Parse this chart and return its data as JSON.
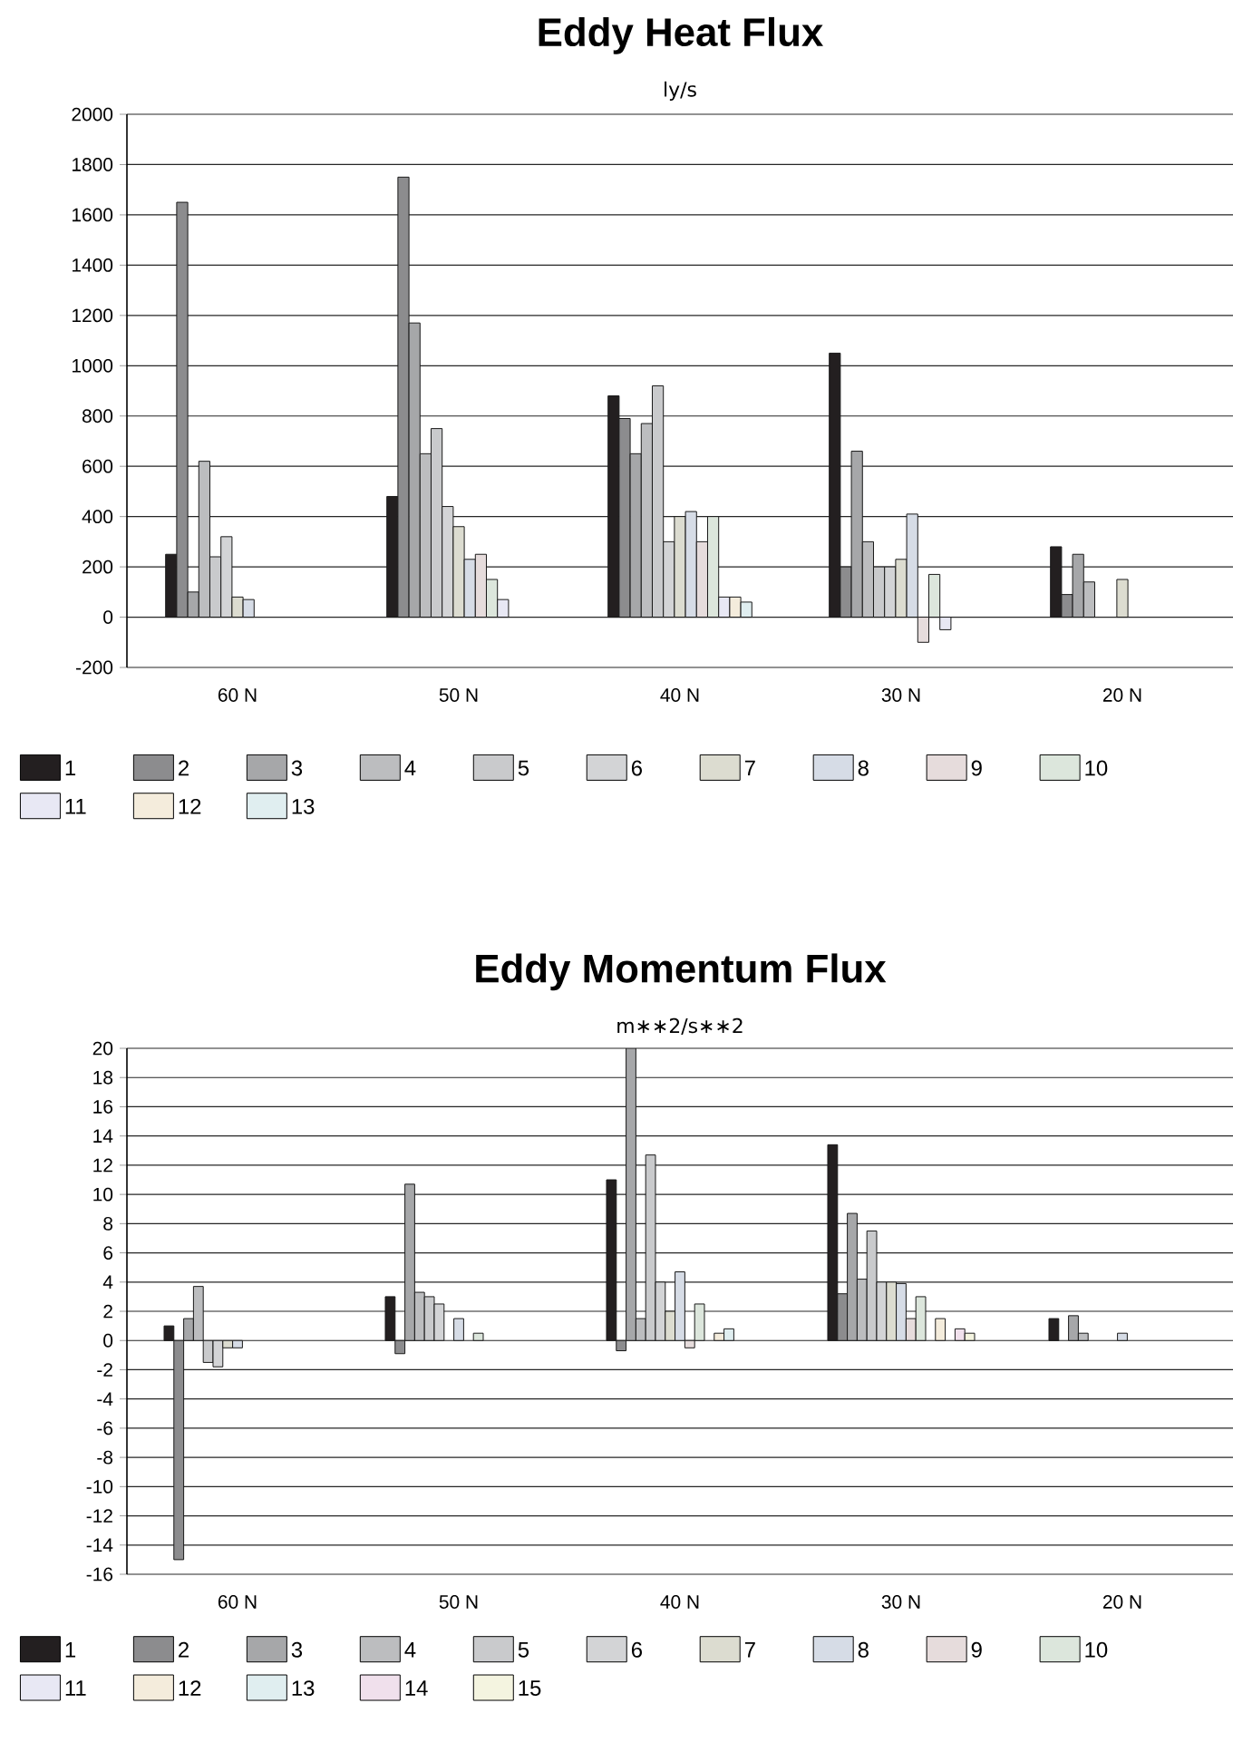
{
  "chart_data": [
    {
      "type": "bar",
      "title": "Eddy Heat Flux",
      "subtitle": "ly/s",
      "categories": [
        "60 N",
        "50 N",
        "40 N",
        "30 N",
        "20 N"
      ],
      "series": [
        {
          "name": "1",
          "color": "#231f20",
          "values": [
            250,
            480,
            880,
            1050,
            280
          ]
        },
        {
          "name": "2",
          "color": "#8c8c8e",
          "values": [
            1650,
            1750,
            790,
            200,
            90
          ]
        },
        {
          "name": "3",
          "color": "#a6a7a9",
          "values": [
            100,
            1170,
            650,
            660,
            250
          ]
        },
        {
          "name": "4",
          "color": "#bcbdbf",
          "values": [
            620,
            650,
            770,
            300,
            140
          ]
        },
        {
          "name": "5",
          "color": "#c9cacc",
          "values": [
            240,
            750,
            920,
            200,
            null
          ]
        },
        {
          "name": "6",
          "color": "#d3d4d6",
          "values": [
            320,
            440,
            300,
            200,
            null
          ]
        },
        {
          "name": "7",
          "color": "#dcdcd0",
          "values": [
            80,
            360,
            400,
            230,
            150
          ]
        },
        {
          "name": "8",
          "color": "#d6dce6",
          "values": [
            70,
            230,
            420,
            410,
            null
          ]
        },
        {
          "name": "9",
          "color": "#e6dcdc",
          "values": [
            null,
            250,
            300,
            -100,
            null
          ]
        },
        {
          "name": "10",
          "color": "#dce6dc",
          "values": [
            null,
            150,
            400,
            170,
            null
          ]
        },
        {
          "name": "11",
          "color": "#e8e8f4",
          "values": [
            null,
            70,
            80,
            -50,
            null
          ]
        },
        {
          "name": "12",
          "color": "#f4ecdc",
          "values": [
            null,
            null,
            80,
            null,
            null
          ]
        },
        {
          "name": "13",
          "color": "#e0eef0",
          "values": [
            null,
            null,
            60,
            null,
            null
          ]
        }
      ],
      "ylim": [
        -200,
        2000
      ],
      "yticks": [
        -200,
        0,
        200,
        400,
        600,
        800,
        1000,
        1200,
        1400,
        1600,
        1800,
        2000
      ],
      "grid": "y",
      "legend": "bottom"
    },
    {
      "type": "bar",
      "title": "Eddy Momentum Flux",
      "subtitle": "m∗∗2/s∗∗2",
      "categories": [
        "60 N",
        "50 N",
        "40 N",
        "30 N",
        "20 N"
      ],
      "series": [
        {
          "name": "1",
          "color": "#231f20",
          "values": [
            1,
            3,
            11,
            13.4,
            1.5
          ]
        },
        {
          "name": "2",
          "color": "#8c8c8e",
          "values": [
            -15,
            -0.9,
            -0.7,
            3.2,
            null
          ]
        },
        {
          "name": "3",
          "color": "#a6a7a9",
          "values": [
            1.5,
            10.7,
            20,
            8.7,
            1.7
          ]
        },
        {
          "name": "4",
          "color": "#bcbdbf",
          "values": [
            3.7,
            3.3,
            1.5,
            4.2,
            0.5
          ]
        },
        {
          "name": "5",
          "color": "#c9cacc",
          "values": [
            -1.5,
            3,
            12.7,
            7.5,
            null
          ]
        },
        {
          "name": "6",
          "color": "#d3d4d6",
          "values": [
            -1.8,
            2.5,
            4,
            4,
            null
          ]
        },
        {
          "name": "7",
          "color": "#dcdcd0",
          "values": [
            -0.5,
            null,
            2,
            4,
            null
          ]
        },
        {
          "name": "8",
          "color": "#d6dce6",
          "values": [
            -0.5,
            1.5,
            4.7,
            3.9,
            0.5
          ]
        },
        {
          "name": "9",
          "color": "#e6dcdc",
          "values": [
            null,
            null,
            -0.5,
            1.5,
            null
          ]
        },
        {
          "name": "10",
          "color": "#dce6dc",
          "values": [
            null,
            0.5,
            2.5,
            3,
            null
          ]
        },
        {
          "name": "11",
          "color": "#e8e8f4",
          "values": [
            null,
            null,
            null,
            null,
            null
          ]
        },
        {
          "name": "12",
          "color": "#f4ecdc",
          "values": [
            null,
            null,
            0.5,
            1.5,
            null
          ]
        },
        {
          "name": "13",
          "color": "#e0eef0",
          "values": [
            null,
            null,
            0.8,
            null,
            null
          ]
        },
        {
          "name": "14",
          "color": "#f0e0ec",
          "values": [
            null,
            null,
            null,
            0.8,
            null
          ]
        },
        {
          "name": "15",
          "color": "#f4f4e0",
          "values": [
            null,
            null,
            null,
            0.5,
            null
          ]
        }
      ],
      "ylim": [
        -16,
        20
      ],
      "yticks": [
        -16,
        -14,
        -12,
        -10,
        -8,
        -6,
        -4,
        -2,
        0,
        2,
        4,
        6,
        8,
        10,
        12,
        14,
        16,
        18,
        20
      ],
      "grid": "y",
      "legend": "bottom"
    }
  ]
}
